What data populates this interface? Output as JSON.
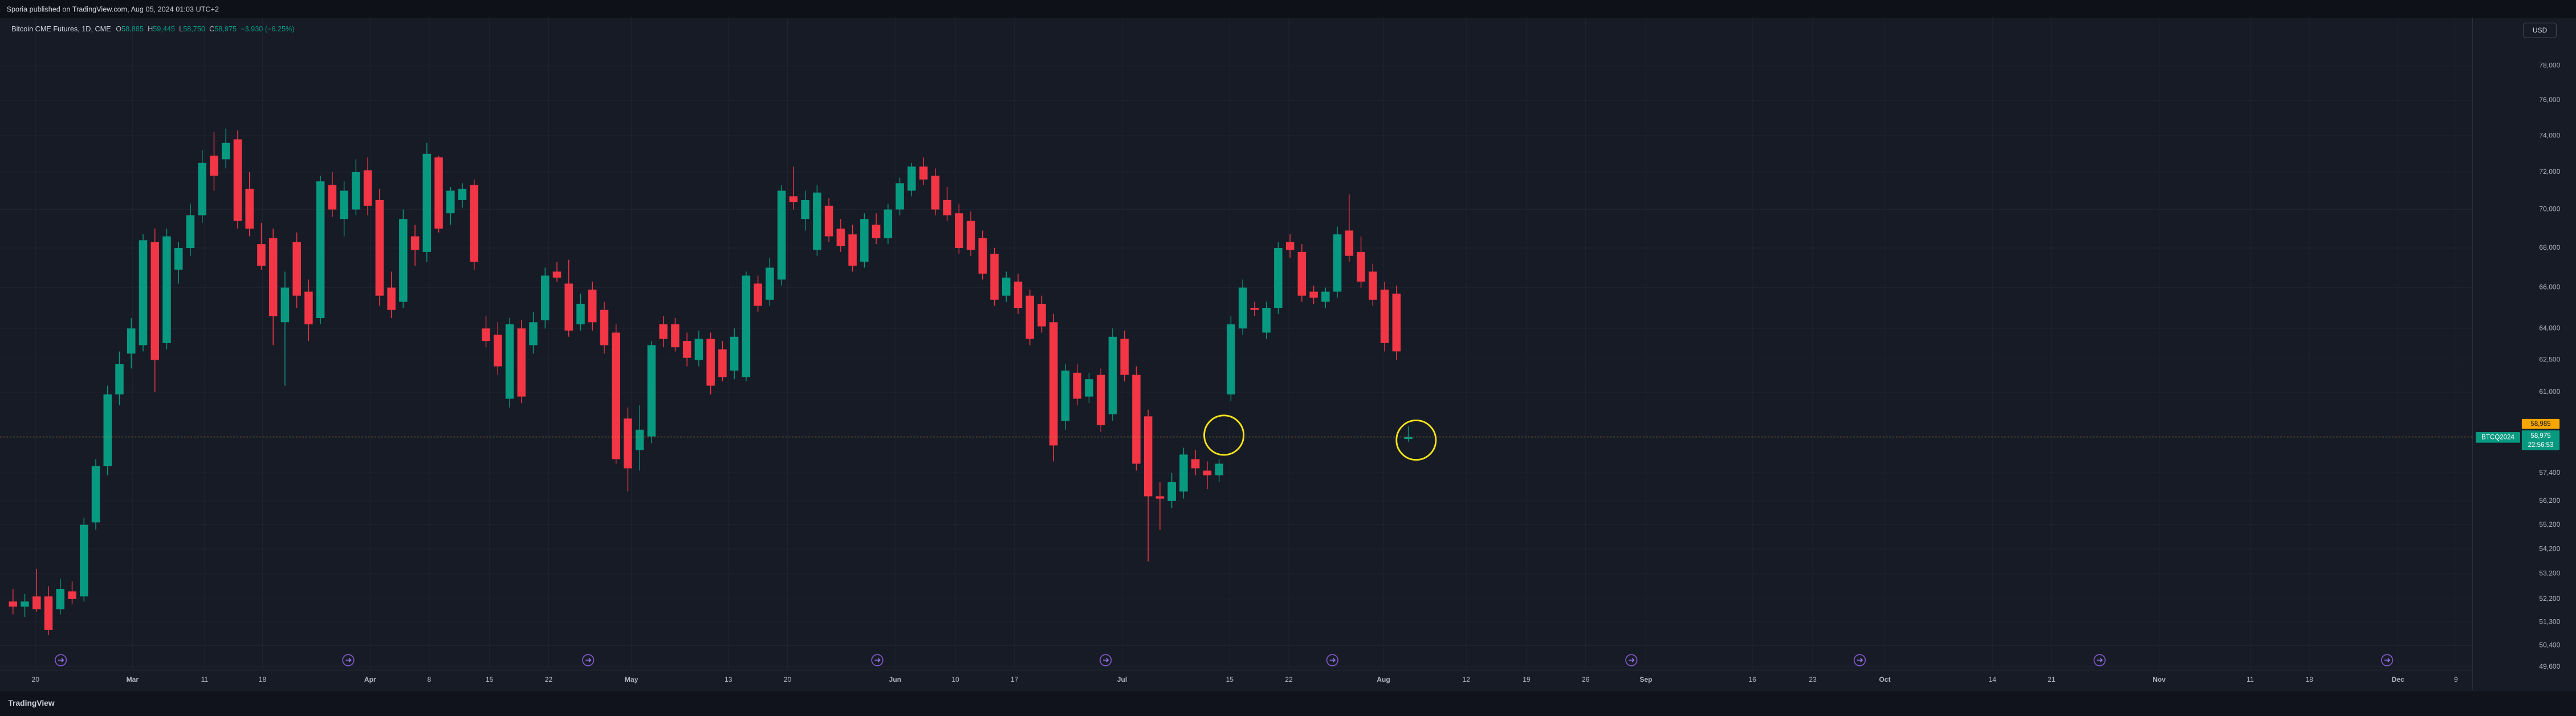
{
  "chart_data": {
    "type": "candlestick",
    "published": "Sporia published on TradingView.com, Aug 05, 2024 01:03 UTC+2",
    "title": "Bitcoin CME Futures, 1D, CME",
    "legend_items": [
      {
        "key": "O",
        "value": "58,885"
      },
      {
        "key": "H",
        "value": "59,445"
      },
      {
        "key": "L",
        "value": "58,750"
      },
      {
        "key": "C",
        "value": "58,975"
      }
    ],
    "change": "−3,930 (−6.25%)",
    "currency": "USD",
    "symbol_label": "BTCQ2024",
    "line_label": "58,985",
    "price_label": "58,975",
    "countdown": "22:56:53",
    "footer": "TradingView",
    "up_color": "#089981",
    "down_color": "#f23645",
    "log": true,
    "grid": true,
    "ylim": [
      49480,
      80860
    ],
    "xlim": [
      -1.1,
      208
    ],
    "yticks": [
      {
        "value": 78000,
        "label": "78,000"
      },
      {
        "value": 76000,
        "label": "76,000"
      },
      {
        "value": 74000,
        "label": "74,000"
      },
      {
        "value": 72000,
        "label": "72,000"
      },
      {
        "value": 70000,
        "label": "70,000"
      },
      {
        "value": 68000,
        "label": "68,000"
      },
      {
        "value": 66000,
        "label": "66,000"
      },
      {
        "value": 64000,
        "label": "64,000"
      },
      {
        "value": 62500,
        "label": "62,500"
      },
      {
        "value": 61000,
        "label": "61,000"
      },
      {
        "value": 57400,
        "label": "57,400"
      },
      {
        "value": 56200,
        "label": "56,200"
      },
      {
        "value": 55200,
        "label": "55,200"
      },
      {
        "value": 54200,
        "label": "54,200"
      },
      {
        "value": 53200,
        "label": "53,200"
      },
      {
        "value": 52200,
        "label": "52,200"
      },
      {
        "value": 51300,
        "label": "51,300"
      },
      {
        "value": 50400,
        "label": "50,400"
      },
      {
        "value": 49600,
        "label": "49,600"
      }
    ],
    "xticks": [
      {
        "value": 1.9,
        "label": "20"
      },
      {
        "value": 10.1,
        "label": "Mar"
      },
      {
        "value": 16.2,
        "label": "11"
      },
      {
        "value": 21.1,
        "label": "18"
      },
      {
        "value": 30.2,
        "label": "Apr"
      },
      {
        "value": 35.2,
        "label": "8"
      },
      {
        "value": 40.3,
        "label": "15"
      },
      {
        "value": 45.3,
        "label": "22"
      },
      {
        "value": 52.3,
        "label": "May"
      },
      {
        "value": 60.5,
        "label": "13"
      },
      {
        "value": 65.5,
        "label": "20"
      },
      {
        "value": 74.6,
        "label": "Jun"
      },
      {
        "value": 79.7,
        "label": "10"
      },
      {
        "value": 84.7,
        "label": "17"
      },
      {
        "value": 93.8,
        "label": "Jul"
      },
      {
        "value": 102.9,
        "label": "15"
      },
      {
        "value": 107.9,
        "label": "22"
      },
      {
        "value": 115.9,
        "label": "Aug"
      },
      {
        "value": 122.9,
        "label": "12"
      },
      {
        "value": 128.0,
        "label": "19"
      },
      {
        "value": 133.0,
        "label": "26"
      },
      {
        "value": 138.1,
        "label": "Sep"
      },
      {
        "value": 147.1,
        "label": "16"
      },
      {
        "value": 152.2,
        "label": "23"
      },
      {
        "value": 158.3,
        "label": "Oct"
      },
      {
        "value": 167.4,
        "label": "14"
      },
      {
        "value": 172.4,
        "label": "21"
      },
      {
        "value": 181.5,
        "label": "Nov"
      },
      {
        "value": 189.2,
        "label": "11"
      },
      {
        "value": 194.2,
        "label": "18"
      },
      {
        "value": 201.7,
        "label": "Dec"
      },
      {
        "value": 206.6,
        "label": "9"
      }
    ],
    "ohlc": [
      [
        52100,
        52600,
        51600,
        51900
      ],
      [
        51900,
        52400,
        51500,
        52100
      ],
      [
        52300,
        53400,
        51700,
        51800
      ],
      [
        52300,
        52700,
        50800,
        51000
      ],
      [
        51800,
        53000,
        51600,
        52600
      ],
      [
        52500,
        52900,
        52000,
        52200
      ],
      [
        52300,
        55500,
        52100,
        55200
      ],
      [
        55300,
        58000,
        55000,
        57700
      ],
      [
        57700,
        61300,
        57300,
        60900
      ],
      [
        60900,
        62900,
        60400,
        62300
      ],
      [
        62800,
        64500,
        62100,
        64000
      ],
      [
        63200,
        68700,
        62900,
        68400
      ],
      [
        68300,
        69000,
        61000,
        62500
      ],
      [
        63300,
        69000,
        63000,
        68600
      ],
      [
        66900,
        68300,
        66200,
        68000
      ],
      [
        68000,
        70300,
        67600,
        69700
      ],
      [
        69700,
        73200,
        69300,
        72500
      ],
      [
        72900,
        74200,
        71000,
        71800
      ],
      [
        72700,
        74400,
        72200,
        73600
      ],
      [
        73800,
        74300,
        69000,
        69400
      ],
      [
        71100,
        72000,
        68600,
        69000
      ],
      [
        68200,
        69300,
        66900,
        67100
      ],
      [
        68500,
        69000,
        63200,
        64600
      ],
      [
        64300,
        66800,
        61300,
        66000
      ],
      [
        68300,
        68800,
        65000,
        65600
      ],
      [
        65800,
        66400,
        63400,
        64200
      ],
      [
        64500,
        71800,
        64200,
        71500
      ],
      [
        71300,
        72000,
        69600,
        70000
      ],
      [
        69500,
        71500,
        68600,
        71000
      ],
      [
        70000,
        72700,
        69700,
        72000
      ],
      [
        72100,
        72800,
        69700,
        70200
      ],
      [
        70500,
        71100,
        65100,
        65600
      ],
      [
        66000,
        66800,
        64500,
        64900
      ],
      [
        65300,
        70000,
        65000,
        69500
      ],
      [
        68600,
        69200,
        67100,
        67900
      ],
      [
        67800,
        73600,
        67300,
        73000
      ],
      [
        72800,
        72900,
        68800,
        69000
      ],
      [
        69800,
        71200,
        69200,
        71000
      ],
      [
        70500,
        71400,
        70100,
        71100
      ],
      [
        71300,
        71600,
        66900,
        67300
      ],
      [
        64000,
        64600,
        63100,
        63400
      ],
      [
        63700,
        64300,
        61800,
        62200
      ],
      [
        60700,
        64500,
        60300,
        64200
      ],
      [
        64000,
        64400,
        60500,
        60800
      ],
      [
        63200,
        64800,
        62800,
        64300
      ],
      [
        64400,
        67000,
        64000,
        66600
      ],
      [
        66800,
        67300,
        66300,
        66500
      ],
      [
        66200,
        67400,
        63600,
        63900
      ],
      [
        64200,
        65700,
        63900,
        65200
      ],
      [
        65900,
        66300,
        63900,
        64300
      ],
      [
        64900,
        65300,
        62800,
        63200
      ],
      [
        63800,
        64200,
        57800,
        58000
      ],
      [
        59800,
        60300,
        56600,
        57600
      ],
      [
        58400,
        60400,
        57500,
        59300
      ],
      [
        59000,
        63400,
        58700,
        63200
      ],
      [
        64200,
        64600,
        63100,
        63500
      ],
      [
        64200,
        64500,
        62900,
        63100
      ],
      [
        63400,
        63800,
        62200,
        62600
      ],
      [
        62500,
        63900,
        62200,
        63500
      ],
      [
        63500,
        63800,
        60900,
        61300
      ],
      [
        63000,
        63400,
        61500,
        61700
      ],
      [
        62000,
        64000,
        61600,
        63600
      ],
      [
        61700,
        66800,
        61500,
        66600
      ],
      [
        66200,
        66600,
        64800,
        65100
      ],
      [
        65400,
        67500,
        65100,
        67000
      ],
      [
        66400,
        71300,
        66100,
        71000
      ],
      [
        70700,
        72300,
        70000,
        70400
      ],
      [
        69500,
        71000,
        68900,
        70500
      ],
      [
        67900,
        71300,
        67600,
        70900
      ],
      [
        70200,
        70600,
        68300,
        68600
      ],
      [
        69000,
        69500,
        67800,
        68100
      ],
      [
        68700,
        69200,
        66800,
        67100
      ],
      [
        67300,
        69800,
        67000,
        69500
      ],
      [
        69200,
        69800,
        68200,
        68500
      ],
      [
        68500,
        70300,
        68200,
        70000
      ],
      [
        70000,
        71700,
        69700,
        71400
      ],
      [
        71000,
        72500,
        70700,
        72300
      ],
      [
        72300,
        72800,
        71300,
        71600
      ],
      [
        71800,
        72200,
        69700,
        70000
      ],
      [
        70500,
        71200,
        69400,
        69700
      ],
      [
        69800,
        70300,
        67700,
        68000
      ],
      [
        69400,
        69900,
        67600,
        67900
      ],
      [
        68500,
        68900,
        66400,
        66700
      ],
      [
        67700,
        68000,
        65100,
        65400
      ],
      [
        65600,
        66800,
        65300,
        66500
      ],
      [
        66300,
        66700,
        64700,
        65000
      ],
      [
        65600,
        65900,
        63200,
        63500
      ],
      [
        65200,
        65600,
        63800,
        64100
      ],
      [
        64300,
        64700,
        57900,
        58600
      ],
      [
        59700,
        62300,
        59300,
        62000
      ],
      [
        61900,
        62300,
        60400,
        60700
      ],
      [
        60800,
        61900,
        60500,
        61600
      ],
      [
        61800,
        62100,
        59200,
        59500
      ],
      [
        60000,
        64000,
        59700,
        63600
      ],
      [
        63500,
        63900,
        61500,
        61800
      ],
      [
        61800,
        62200,
        57500,
        57800
      ],
      [
        59900,
        60200,
        53700,
        56400
      ],
      [
        56400,
        57000,
        55000,
        56300
      ],
      [
        56200,
        57400,
        55900,
        57000
      ],
      [
        56600,
        58500,
        56300,
        58200
      ],
      [
        58000,
        58400,
        57300,
        57600
      ],
      [
        57500,
        57900,
        56700,
        57300
      ],
      [
        57300,
        58000,
        57000,
        57800
      ],
      [
        60900,
        64600,
        60600,
        64200
      ],
      [
        64000,
        66400,
        63700,
        66000
      ],
      [
        65000,
        65300,
        64600,
        64900
      ],
      [
        63800,
        65300,
        63500,
        65000
      ],
      [
        65000,
        68300,
        64700,
        68000
      ],
      [
        68300,
        68700,
        67500,
        67900
      ],
      [
        67800,
        68200,
        65300,
        65600
      ],
      [
        65800,
        66100,
        65200,
        65500
      ],
      [
        65300,
        66000,
        65000,
        65800
      ],
      [
        65800,
        69100,
        65500,
        68700
      ],
      [
        68900,
        70800,
        67300,
        67600
      ],
      [
        67800,
        68600,
        66000,
        66300
      ],
      [
        66800,
        67200,
        65100,
        65400
      ],
      [
        65900,
        66300,
        62900,
        63300
      ],
      [
        65700,
        66100,
        62500,
        62905
      ],
      [
        58885,
        59445,
        58750,
        58975
      ]
    ]
  }
}
